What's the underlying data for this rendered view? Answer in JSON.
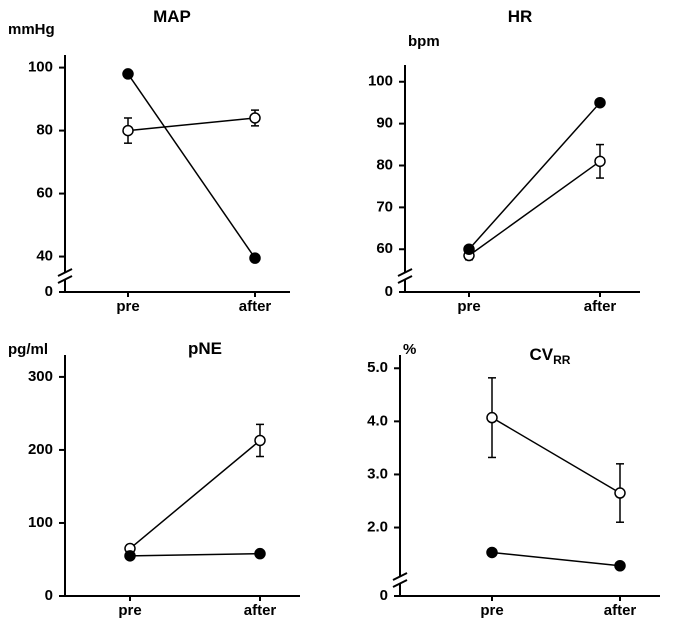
{
  "chart_data": [
    {
      "type": "line",
      "title": "MAP",
      "y_label": "mmHg",
      "categories": [
        "pre",
        "after"
      ],
      "ylim": [
        37,
        104
      ],
      "yticks": [
        0,
        40,
        60,
        80,
        100
      ],
      "axis_break": true,
      "series": [
        {
          "color": "#000000",
          "marker_fill": "#ffffff",
          "values": [
            80,
            84
          ],
          "errors": [
            4,
            2.5
          ]
        },
        {
          "color": "#000000",
          "marker_fill": "#000000",
          "values": [
            98,
            39.5
          ]
        }
      ]
    },
    {
      "type": "line",
      "title": "HR",
      "y_label": "bpm",
      "categories": [
        "pre",
        "after"
      ],
      "ylim": [
        56,
        104
      ],
      "yticks": [
        0,
        60,
        70,
        80,
        90,
        100
      ],
      "axis_break": true,
      "series": [
        {
          "color": "#000000",
          "marker_fill": "#ffffff",
          "values": [
            58.5,
            81
          ],
          "errors": [
            1,
            4
          ]
        },
        {
          "color": "#000000",
          "marker_fill": "#000000",
          "values": [
            60,
            95
          ]
        }
      ]
    },
    {
      "type": "line",
      "title": "pNE",
      "y_label": "pg/ml",
      "categories": [
        "pre",
        "after"
      ],
      "ylim": [
        0,
        330
      ],
      "yticks": [
        0,
        100,
        200,
        300
      ],
      "axis_break": false,
      "series": [
        {
          "color": "#000000",
          "marker_fill": "#ffffff",
          "values": [
            65,
            213
          ],
          "errors": [
            5,
            22
          ]
        },
        {
          "color": "#000000",
          "marker_fill": "#000000",
          "values": [
            55,
            58
          ]
        }
      ]
    },
    {
      "type": "line",
      "title": "CV",
      "title_subscript": "RR",
      "y_label": "%",
      "categories": [
        "pre",
        "after"
      ],
      "ylim": [
        1.2,
        5.25
      ],
      "yticks": [
        0,
        {
          "value": 2,
          "label": "2.0"
        },
        {
          "value": 3,
          "label": "3.0"
        },
        {
          "value": 4,
          "label": "4.0"
        },
        {
          "value": 5,
          "label": "5.0"
        }
      ],
      "axis_break": true,
      "series": [
        {
          "color": "#000000",
          "marker_fill": "#ffffff",
          "values": [
            4.07,
            2.65
          ],
          "errors": [
            0.75,
            0.55
          ]
        },
        {
          "color": "#000000",
          "marker_fill": "#000000",
          "values": [
            1.53,
            1.28
          ]
        }
      ]
    }
  ]
}
